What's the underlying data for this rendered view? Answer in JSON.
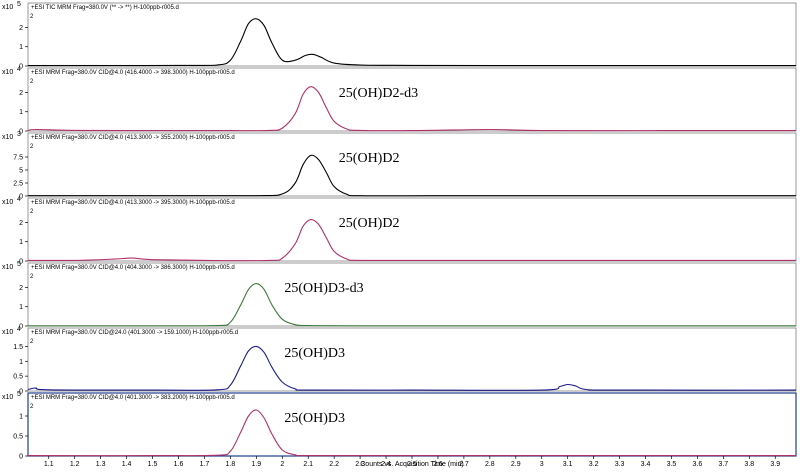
{
  "chart_data": [
    {
      "type": "line",
      "title": "+ESI TIC MRM Frag=380.0V (** -> **) H-100ppb-r005.d",
      "multiplier": "x10",
      "exponent": "5",
      "yticks": [
        "0",
        "1",
        "2"
      ],
      "ylim": [
        0,
        2.7
      ],
      "color": "#000000",
      "annotation": "",
      "x": [
        1.02,
        1.2,
        1.4,
        1.6,
        1.75,
        1.8,
        1.84,
        1.87,
        1.9,
        1.93,
        1.96,
        2.0,
        2.05,
        2.09,
        2.12,
        2.15,
        2.2,
        2.3,
        2.5,
        3.0,
        3.5,
        3.98
      ],
      "values": [
        0.02,
        0.02,
        0.02,
        0.03,
        0.05,
        0.3,
        1.3,
        2.2,
        2.45,
        2.1,
        1.2,
        0.3,
        0.3,
        0.55,
        0.6,
        0.45,
        0.15,
        0.05,
        0.03,
        0.02,
        0.02,
        0.02
      ]
    },
    {
      "type": "line",
      "title": "+ESI MRM Frag=380.0V CID@4.0 (416.4000 -> 398.3000) H-100ppb-r005.d",
      "multiplier": "x10",
      "exponent": "4",
      "yticks": [
        "0",
        "1",
        "2"
      ],
      "ylim": [
        0,
        2.7
      ],
      "color": "#b0306a",
      "annotation": "25(OH)D2-d3",
      "x": [
        1.02,
        1.05,
        1.2,
        1.5,
        1.8,
        1.95,
        2.0,
        2.05,
        2.08,
        2.11,
        2.14,
        2.17,
        2.2,
        2.25,
        2.3,
        2.5,
        2.8,
        3.0,
        3.5,
        3.98
      ],
      "values": [
        0.02,
        0.08,
        0.03,
        0.02,
        0.02,
        0.03,
        0.15,
        0.9,
        1.9,
        2.3,
        2.0,
        1.2,
        0.5,
        0.1,
        0.03,
        0.02,
        0.08,
        0.02,
        0.02,
        0.02
      ]
    },
    {
      "type": "line",
      "title": "+ESI MRM Frag=380.0V CID@4.0 (413.3000 -> 355.2000) H-100ppb-r005.d",
      "multiplier": "x10",
      "exponent": "3",
      "yticks": [
        "0",
        "2.5",
        "5",
        "7.5"
      ],
      "ylim": [
        0,
        10
      ],
      "color": "#000000",
      "annotation": "25(OH)D2",
      "x": [
        1.02,
        1.5,
        1.9,
        2.0,
        2.05,
        2.08,
        2.11,
        2.14,
        2.17,
        2.2,
        2.25,
        2.3,
        2.6,
        3.0,
        3.5,
        3.98
      ],
      "values": [
        0.05,
        0.05,
        0.05,
        0.4,
        2.5,
        6.0,
        7.8,
        7.0,
        4.5,
        1.8,
        0.3,
        0.05,
        0.05,
        0.05,
        0.05,
        0.05
      ]
    },
    {
      "type": "line",
      "title": "+ESI MRM Frag=380.0V CID@4.0 (413.3000 -> 395.3000) H-100ppb-r005.d",
      "multiplier": "x10",
      "exponent": "4",
      "yticks": [
        "0",
        "1",
        "2"
      ],
      "ylim": [
        0,
        2.7
      ],
      "color": "#b0306a",
      "annotation": "25(OH)D2",
      "x": [
        1.02,
        1.2,
        1.35,
        1.42,
        1.5,
        1.7,
        1.95,
        2.0,
        2.05,
        2.08,
        2.11,
        2.14,
        2.17,
        2.2,
        2.25,
        2.3,
        2.6,
        3.0,
        3.5,
        3.98
      ],
      "values": [
        0.03,
        0.03,
        0.1,
        0.15,
        0.07,
        0.03,
        0.03,
        0.15,
        0.9,
        1.8,
        2.15,
        1.9,
        1.2,
        0.5,
        0.1,
        0.03,
        0.03,
        0.03,
        0.03,
        0.03
      ]
    },
    {
      "type": "line",
      "title": "+ESI MRM Frag=380.0V CID@4.0 (404.3000 -> 386.3000) H-100ppb-r005.d",
      "multiplier": "x10",
      "exponent": "5",
      "yticks": [
        "0",
        "1",
        "2"
      ],
      "ylim": [
        0,
        2.7
      ],
      "color": "#3a7a3a",
      "annotation": "25(OH)D3-d3",
      "x": [
        1.02,
        1.5,
        1.75,
        1.8,
        1.84,
        1.87,
        1.9,
        1.93,
        1.96,
        2.0,
        2.05,
        2.1,
        2.3,
        3.0,
        3.98
      ],
      "values": [
        0.01,
        0.01,
        0.02,
        0.2,
        1.1,
        1.9,
        2.2,
        1.9,
        1.1,
        0.35,
        0.07,
        0.02,
        0.01,
        0.01,
        0.01
      ]
    },
    {
      "type": "line",
      "title": "+ESI MRM Frag=380.0V CID@24.0 (401.3000 -> 159.1000) H-100ppb-r005.d",
      "multiplier": "x10",
      "exponent": "4",
      "yticks": [
        "0",
        "0.5",
        "1",
        "1.5"
      ],
      "ylim": [
        0,
        1.75
      ],
      "color": "#1a1a8c",
      "annotation": "25(OH)D3",
      "x": [
        1.02,
        1.05,
        1.1,
        1.5,
        1.75,
        1.8,
        1.84,
        1.87,
        1.9,
        1.93,
        1.96,
        2.0,
        2.05,
        2.1,
        2.5,
        3.0,
        3.07,
        3.1,
        3.13,
        3.17,
        3.3,
        3.98
      ],
      "values": [
        0.05,
        0.1,
        0.04,
        0.03,
        0.04,
        0.2,
        0.85,
        1.35,
        1.5,
        1.3,
        0.8,
        0.3,
        0.07,
        0.03,
        0.03,
        0.03,
        0.15,
        0.22,
        0.17,
        0.05,
        0.03,
        0.03
      ]
    },
    {
      "type": "line",
      "title": "+ESI MRM Frag=380.0V CID@4.0 (401.3000 -> 383.2000) H-100ppb-r005.d",
      "multiplier": "x10",
      "exponent": "5",
      "yticks": [
        "0",
        "0.5",
        "1"
      ],
      "ylim": [
        0,
        1.3
      ],
      "color": "#b0306a",
      "annotation": "25(OH)D3",
      "x": [
        1.02,
        1.5,
        1.75,
        1.8,
        1.84,
        1.87,
        1.9,
        1.93,
        1.96,
        2.0,
        2.05,
        2.1,
        2.5,
        3.0,
        3.98
      ],
      "values": [
        0.01,
        0.01,
        0.02,
        0.12,
        0.6,
        1.0,
        1.15,
        0.95,
        0.55,
        0.15,
        0.03,
        0.01,
        0.01,
        0.01,
        0.01
      ]
    }
  ],
  "x_axis": {
    "ticks": [
      "1.1",
      "1.2",
      "1.3",
      "1.4",
      "1.5",
      "1.6",
      "1.7",
      "1.8",
      "1.9",
      "2",
      "2.1",
      "2.2",
      "2.3",
      "2.4",
      "2.5",
      "2.6",
      "2.7",
      "2.8",
      "2.9",
      "3",
      "3.1",
      "3.2",
      "3.3",
      "3.4",
      "3.5",
      "3.6",
      "3.7",
      "3.8",
      "3.9"
    ],
    "xlim": [
      1.02,
      3.98
    ],
    "label": "Counts vs. Acquisition Time (min)"
  },
  "corner_marker": "2",
  "colors": {
    "frame": "#7f7f7f",
    "selected_frame": "#1f3f8f"
  }
}
